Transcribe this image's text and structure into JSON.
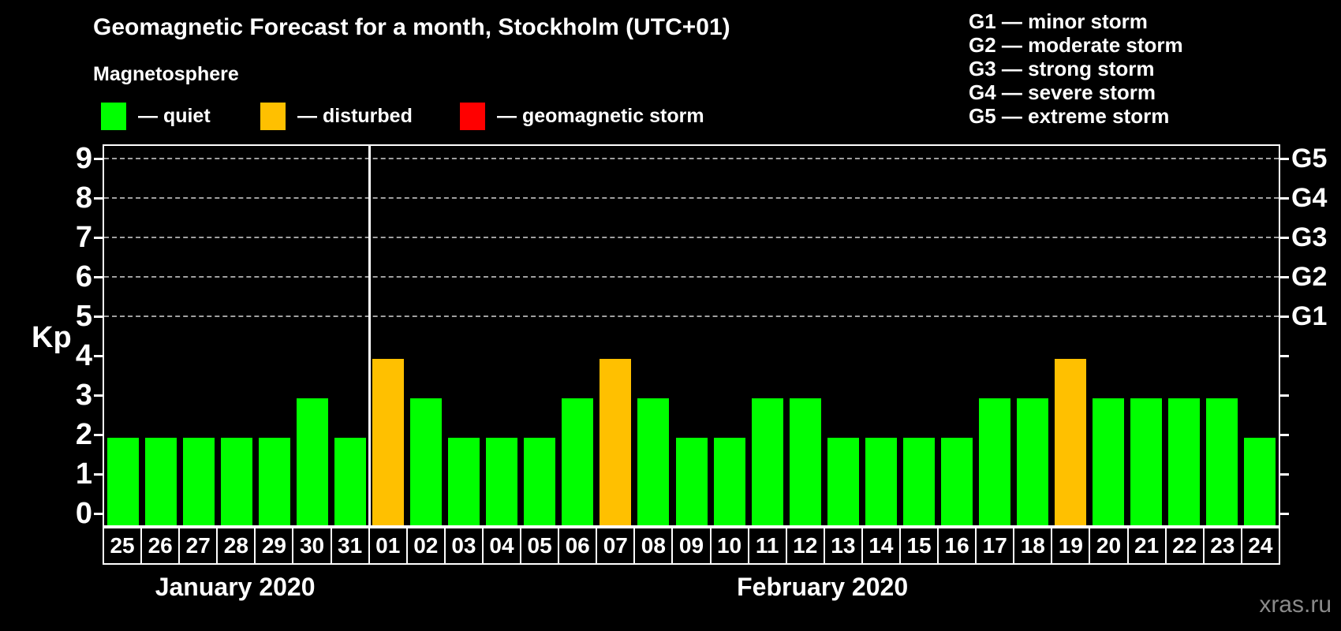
{
  "header": {
    "title": "Geomagnetic Forecast for a month, Stockholm (UTC+01)",
    "subtitle": "Magnetosphere"
  },
  "legend": {
    "items": [
      {
        "name": "quiet",
        "label": "— quiet",
        "color": "#00ff00"
      },
      {
        "name": "disturbed",
        "label": "— disturbed",
        "color": "#ffc000"
      },
      {
        "name": "storm",
        "label": "— geomagnetic storm",
        "color": "#ff0000"
      }
    ]
  },
  "storm_scale": {
    "lines": [
      "G1 — minor storm",
      "G2 — moderate storm",
      "G3 — strong storm",
      "G4 — severe storm",
      "G5 — extreme storm"
    ]
  },
  "watermark": "xras.ru",
  "chart_data": {
    "type": "bar",
    "title": "Geomagnetic Forecast for a month, Stockholm (UTC+01)",
    "ylabel": "Kp",
    "ylim": [
      0,
      9
    ],
    "yticks": [
      0,
      1,
      2,
      3,
      4,
      5,
      6,
      7,
      8,
      9
    ],
    "grid_levels": [
      5,
      6,
      7,
      8,
      9
    ],
    "grid_style": "dashed",
    "legend_position": "top",
    "right_axis_labels": [
      {
        "label": "G1",
        "kp": 5
      },
      {
        "label": "G2",
        "kp": 6
      },
      {
        "label": "G3",
        "kp": 7
      },
      {
        "label": "G4",
        "kp": 8
      },
      {
        "label": "G5",
        "kp": 9
      }
    ],
    "status_colors": {
      "quiet": "#00ff00",
      "disturbed": "#ffc000",
      "storm": "#ff0000"
    },
    "months": [
      {
        "label": "January 2020",
        "days": 7
      },
      {
        "label": "February 2020",
        "days": 24
      }
    ],
    "bars": [
      {
        "day": "25",
        "kp": 2,
        "status": "quiet"
      },
      {
        "day": "26",
        "kp": 2,
        "status": "quiet"
      },
      {
        "day": "27",
        "kp": 2,
        "status": "quiet"
      },
      {
        "day": "28",
        "kp": 2,
        "status": "quiet"
      },
      {
        "day": "29",
        "kp": 2,
        "status": "quiet"
      },
      {
        "day": "30",
        "kp": 3,
        "status": "quiet"
      },
      {
        "day": "31",
        "kp": 2,
        "status": "quiet"
      },
      {
        "day": "01",
        "kp": 4,
        "status": "disturbed"
      },
      {
        "day": "02",
        "kp": 3,
        "status": "quiet"
      },
      {
        "day": "03",
        "kp": 2,
        "status": "quiet"
      },
      {
        "day": "04",
        "kp": 2,
        "status": "quiet"
      },
      {
        "day": "05",
        "kp": 2,
        "status": "quiet"
      },
      {
        "day": "06",
        "kp": 3,
        "status": "quiet"
      },
      {
        "day": "07",
        "kp": 4,
        "status": "disturbed"
      },
      {
        "day": "08",
        "kp": 3,
        "status": "quiet"
      },
      {
        "day": "09",
        "kp": 2,
        "status": "quiet"
      },
      {
        "day": "10",
        "kp": 2,
        "status": "quiet"
      },
      {
        "day": "11",
        "kp": 3,
        "status": "quiet"
      },
      {
        "day": "12",
        "kp": 3,
        "status": "quiet"
      },
      {
        "day": "13",
        "kp": 2,
        "status": "quiet"
      },
      {
        "day": "14",
        "kp": 2,
        "status": "quiet"
      },
      {
        "day": "15",
        "kp": 2,
        "status": "quiet"
      },
      {
        "day": "16",
        "kp": 2,
        "status": "quiet"
      },
      {
        "day": "17",
        "kp": 3,
        "status": "quiet"
      },
      {
        "day": "18",
        "kp": 3,
        "status": "quiet"
      },
      {
        "day": "19",
        "kp": 4,
        "status": "disturbed"
      },
      {
        "day": "20",
        "kp": 3,
        "status": "quiet"
      },
      {
        "day": "21",
        "kp": 3,
        "status": "quiet"
      },
      {
        "day": "22",
        "kp": 3,
        "status": "quiet"
      },
      {
        "day": "23",
        "kp": 3,
        "status": "quiet"
      },
      {
        "day": "24",
        "kp": 2,
        "status": "quiet"
      }
    ]
  }
}
